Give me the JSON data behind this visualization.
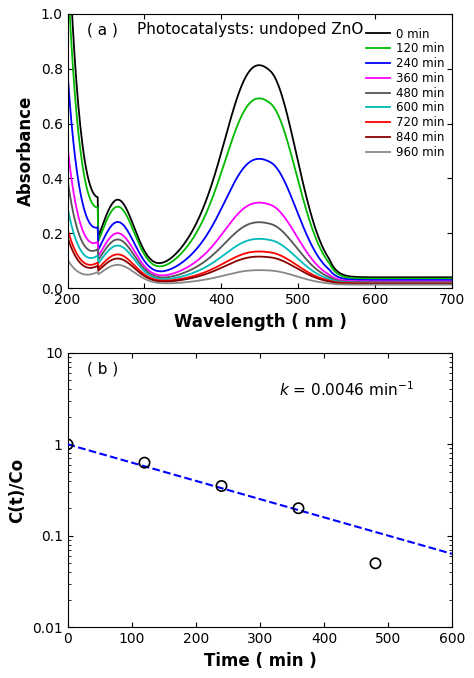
{
  "panel_a_label": "( a )",
  "panel_a_title": "Photocatalysts: undoped ZnO",
  "panel_b_label": "( b )",
  "xlabel_a": "Wavelength ( nm )",
  "ylabel_a": "Absorbance",
  "xlabel_b": "Time ( min )",
  "ylabel_b": "C(t)/Co",
  "xlim_a": [
    200,
    700
  ],
  "ylim_a": [
    0.0,
    1.0
  ],
  "xlim_b": [
    0,
    600
  ],
  "ylim_b": [
    0.01,
    10
  ],
  "xticks_a": [
    200,
    300,
    400,
    500,
    600,
    700
  ],
  "yticks_a": [
    0.0,
    0.2,
    0.4,
    0.6,
    0.8,
    1.0
  ],
  "xticks_b": [
    0,
    100,
    200,
    300,
    400,
    500,
    600
  ],
  "legend_labels": [
    "0 min",
    "120 min",
    "240 min",
    "360 min",
    "480 min",
    "600 min",
    "720 min",
    "840 min",
    "960 min"
  ],
  "legend_colors": [
    "#000000",
    "#00bb00",
    "#0000ff",
    "#ff00ff",
    "#555555",
    "#00bbbb",
    "#ff0000",
    "#880000",
    "#888888"
  ],
  "scatter_x": [
    0,
    120,
    240,
    360,
    480
  ],
  "scatter_y": [
    1.0,
    0.63,
    0.35,
    0.2,
    0.05
  ],
  "k": 0.0046,
  "background_color": "#ffffff"
}
